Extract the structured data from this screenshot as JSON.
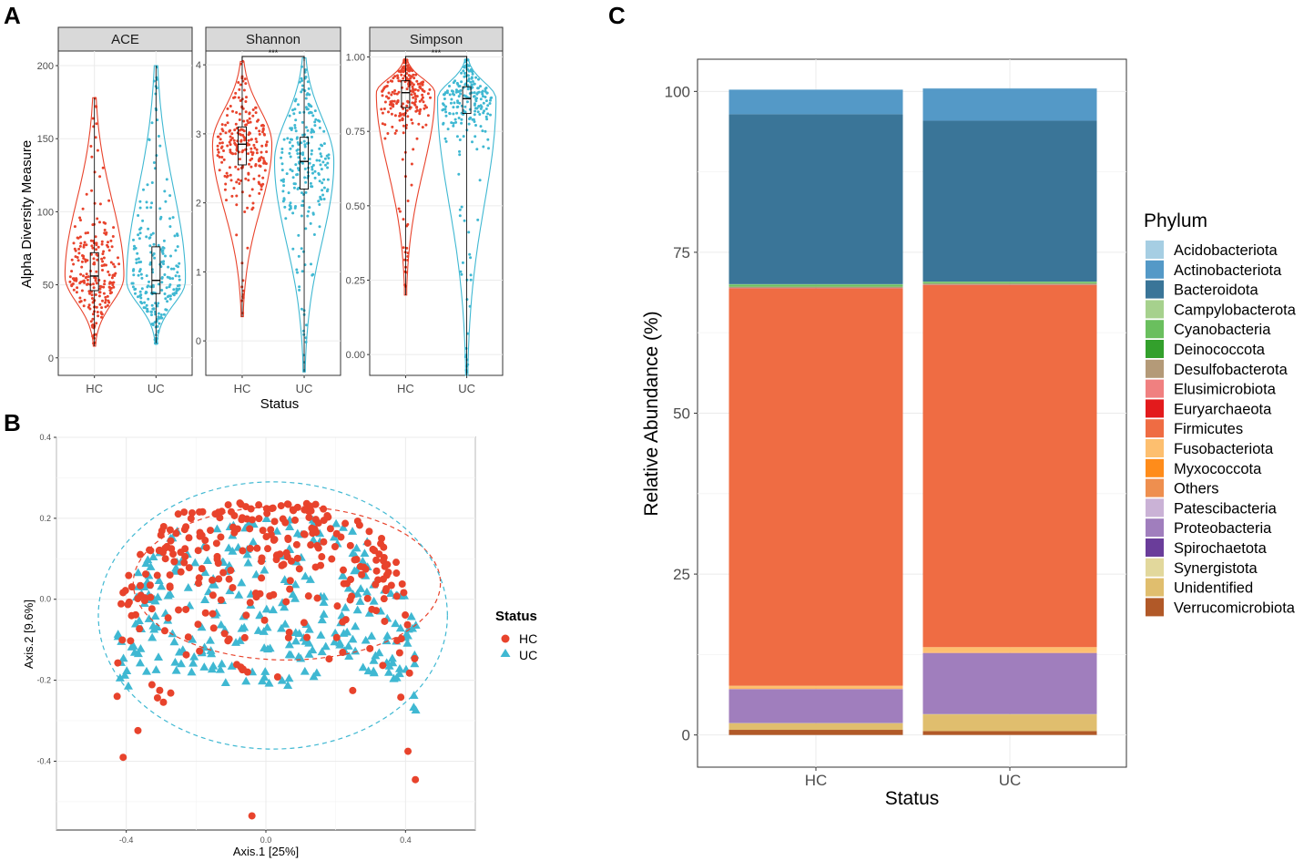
{
  "panel_labels": {
    "a": "A",
    "b": "B",
    "c": "C"
  },
  "colors": {
    "HC": "#E8432C",
    "UC": "#3FB8D2",
    "strip": "#D9D9D9",
    "grid": "#EBEBEB",
    "axis_text": "#4D4D4D"
  },
  "chart_data": [
    {
      "id": "alpha_diversity",
      "type": "violin",
      "ylabel": "Alpha Diversity Measure",
      "xlabel": "Status",
      "categories": [
        "HC",
        "UC"
      ],
      "facets": [
        {
          "name": "ACE",
          "ylim": [
            -12,
            210
          ],
          "yticks": [
            0,
            50,
            100,
            150,
            200
          ],
          "ytick_labels": [
            "0",
            "50",
            "100",
            "150",
            "200"
          ],
          "significance": "",
          "groups": [
            {
              "name": "HC",
              "min": 8,
              "q1": 46,
              "median": 56,
              "q3": 72,
              "max": 178
            },
            {
              "name": "UC",
              "min": 10,
              "q1": 44,
              "median": 53,
              "q3": 76,
              "max": 200
            }
          ]
        },
        {
          "name": "Shannon",
          "ylim": [
            -0.5,
            4.2
          ],
          "yticks": [
            0,
            1,
            2,
            3,
            4
          ],
          "ytick_labels": [
            "0",
            "1",
            "2",
            "3",
            "4"
          ],
          "significance": "***",
          "groups": [
            {
              "name": "HC",
              "min": 0.35,
              "q1": 2.55,
              "median": 2.85,
              "q3": 3.1,
              "max": 4.05
            },
            {
              "name": "UC",
              "min": -0.45,
              "q1": 2.2,
              "median": 2.6,
              "q3": 2.95,
              "max": 4.1
            }
          ]
        },
        {
          "name": "Simpson",
          "ylim": [
            -0.07,
            1.02
          ],
          "yticks": [
            0,
            0.25,
            0.5,
            0.75,
            1.0
          ],
          "ytick_labels": [
            "0.00",
            "0.25",
            "0.50",
            "0.75",
            "1.00"
          ],
          "significance": "***",
          "groups": [
            {
              "name": "HC",
              "min": 0.2,
              "q1": 0.83,
              "median": 0.88,
              "q3": 0.92,
              "max": 0.99
            },
            {
              "name": "UC",
              "min": -0.07,
              "q1": 0.81,
              "median": 0.86,
              "q3": 0.9,
              "max": 0.99
            }
          ]
        }
      ]
    },
    {
      "id": "pcoa",
      "type": "scatter",
      "xlabel": "Axis.1   [25%]",
      "ylabel": "Axis.2   [9.6%]",
      "xlim": [
        -0.6,
        0.6
      ],
      "ylim": [
        -0.57,
        0.4
      ],
      "xticks": [
        -0.4,
        0.0,
        0.4
      ],
      "xtick_labels": [
        "-0.4",
        "0.0",
        "0.4"
      ],
      "yticks": [
        -0.4,
        -0.2,
        0.0,
        0.2,
        0.4
      ],
      "ytick_labels": [
        "-0.4",
        "-0.2",
        "0.0",
        "0.2",
        "0.4"
      ],
      "legend": {
        "title": "Status",
        "items": [
          "HC",
          "UC"
        ],
        "position": "right"
      },
      "ellipses": [
        {
          "group": "HC",
          "cx": 0.06,
          "cy": 0.04,
          "rx": 0.44,
          "ry": 0.19
        },
        {
          "group": "UC",
          "cx": 0.02,
          "cy": -0.04,
          "rx": 0.5,
          "ry": 0.33
        }
      ]
    },
    {
      "id": "phylum_composition",
      "type": "stacked_bar",
      "xlabel": "Status",
      "ylabel": "Relative Abundance (%)",
      "categories": [
        "HC",
        "UC"
      ],
      "ylim": [
        -5,
        105
      ],
      "yticks": [
        0,
        25,
        50,
        75,
        100
      ],
      "ytick_labels": [
        "0",
        "25",
        "50",
        "75",
        "100"
      ],
      "legend_title": "Phylum",
      "series": [
        {
          "name": "Acidobacteriota",
          "color": "#A6CEE3",
          "values": [
            0.05,
            0.05
          ]
        },
        {
          "name": "Actinobacteriota",
          "color": "#5499C7",
          "values": [
            3.8,
            5.0
          ]
        },
        {
          "name": "Bacteroidota",
          "color": "#3A7598",
          "values": [
            26.4,
            25.0
          ]
        },
        {
          "name": "Campylobacterota",
          "color": "#A6D18D",
          "values": [
            0.05,
            0.05
          ]
        },
        {
          "name": "Cyanobacteria",
          "color": "#6ABF5E",
          "values": [
            0.3,
            0.2
          ]
        },
        {
          "name": "Deinococcota",
          "color": "#33A02C",
          "values": [
            0.05,
            0.05
          ]
        },
        {
          "name": "Desulfobacterota",
          "color": "#B49A78",
          "values": [
            0.2,
            0.2
          ]
        },
        {
          "name": "Elusimicrobiota",
          "color": "#F08080",
          "values": [
            0.05,
            0.05
          ]
        },
        {
          "name": "Euryarchaeota",
          "color": "#E31A1C",
          "values": [
            0.05,
            0.05
          ]
        },
        {
          "name": "Firmicutes",
          "color": "#EF6C43",
          "values": [
            61.7,
            56.2
          ]
        },
        {
          "name": "Fusobacteriota",
          "color": "#FDBF6F",
          "values": [
            0.4,
            0.8
          ]
        },
        {
          "name": "Myxococcota",
          "color": "#FF8C1A",
          "values": [
            0.05,
            0.05
          ]
        },
        {
          "name": "Others",
          "color": "#EE8F4F",
          "values": [
            0.05,
            0.05
          ]
        },
        {
          "name": "Patescibacteria",
          "color": "#CAB2D6",
          "values": [
            0.05,
            0.05
          ]
        },
        {
          "name": "Proteobacteria",
          "color": "#A07EBD",
          "values": [
            5.2,
            9.4
          ]
        },
        {
          "name": "Spirochaetota",
          "color": "#6A3D9A",
          "values": [
            0.05,
            0.05
          ]
        },
        {
          "name": "Synergistota",
          "color": "#E2D89C",
          "values": [
            0.05,
            0.05
          ]
        },
        {
          "name": "Unidentified",
          "color": "#E0BE6E",
          "values": [
            1.0,
            2.6
          ]
        },
        {
          "name": "Verrucomicrobiota",
          "color": "#B15928",
          "values": [
            0.8,
            0.6
          ]
        }
      ]
    }
  ]
}
